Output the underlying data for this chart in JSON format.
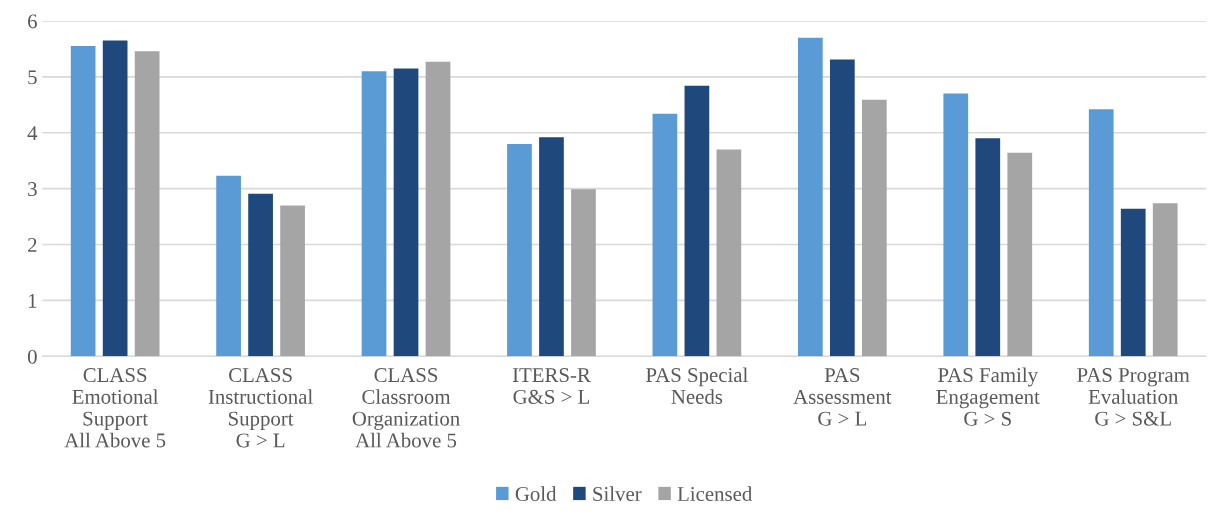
{
  "chart_data": {
    "type": "bar",
    "categories": [
      "CLASS\nEmotional\nSupport\nAll Above 5",
      "CLASS\nInstructional\nSupport\nG > L",
      "CLASS\nClassroom\nOrganization\nAll Above 5",
      "ITERS-R\nG&S > L",
      "PAS Special\nNeeds",
      "PAS\nAssessment\nG > L",
      "PAS Family\nEngagement\nG > S",
      "PAS Program\nEvaluation\nG > S&L"
    ],
    "series": [
      {
        "name": "Gold",
        "color": "#5b9bd5",
        "values": [
          5.55,
          3.23,
          5.1,
          3.8,
          4.34,
          5.7,
          4.7,
          4.42
        ]
      },
      {
        "name": "Silver",
        "color": "#1f497d",
        "values": [
          5.65,
          2.91,
          5.15,
          3.92,
          4.84,
          5.31,
          3.9,
          2.64
        ]
      },
      {
        "name": "Licensed",
        "color": "#a5a5a5",
        "values": [
          5.46,
          2.7,
          5.27,
          2.99,
          3.7,
          4.59,
          3.64,
          2.74
        ]
      }
    ],
    "ylim": [
      0,
      6
    ],
    "yticks": [
      0,
      1,
      2,
      3,
      4,
      5,
      6
    ],
    "grid": "y",
    "legend": "bottom"
  }
}
